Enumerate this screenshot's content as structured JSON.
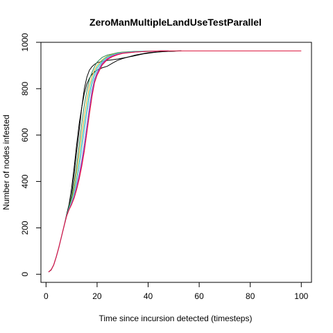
{
  "chart_data": {
    "type": "line",
    "title": "ZeroManMultipleLandUseTestParallel",
    "xlabel": "Time since incursion detected (timesteps)",
    "ylabel": "Number of nodes infested",
    "xlim": [
      -2,
      104
    ],
    "ylim": [
      -35,
      1000
    ],
    "xticks": [
      "0",
      "20",
      "40",
      "60",
      "80",
      "100"
    ],
    "yticks": [
      "0",
      "200",
      "400",
      "600",
      "800",
      "1000"
    ],
    "grid": false,
    "legend": "none",
    "series": [
      {
        "color": "#000000",
        "x": [
          1,
          2,
          3,
          4,
          5,
          6,
          7,
          8,
          9,
          10,
          11,
          12,
          13,
          14,
          15,
          16,
          17,
          18,
          19,
          20,
          22,
          24,
          26,
          28,
          30,
          32,
          34,
          36,
          38,
          40,
          42,
          44,
          46,
          48,
          50,
          52,
          53
        ],
        "y": [
          10,
          18,
          40,
          75,
          115,
          160,
          205,
          250,
          290,
          340,
          430,
          530,
          620,
          720,
          800,
          850,
          880,
          895,
          905,
          912,
          918,
          922,
          925,
          928,
          932,
          936,
          940,
          945,
          950,
          953,
          956,
          958,
          960,
          961,
          962,
          963,
          963
        ]
      },
      {
        "color": "#000000",
        "x": [
          1,
          2,
          3,
          4,
          5,
          6,
          7,
          8,
          9,
          10,
          11,
          12,
          13,
          14,
          15,
          16,
          17,
          18,
          19,
          20,
          22,
          24,
          26,
          28,
          30,
          35,
          40,
          45,
          50,
          53
        ],
        "y": [
          10,
          20,
          40,
          75,
          115,
          160,
          205,
          255,
          300,
          370,
          460,
          560,
          650,
          720,
          780,
          820,
          845,
          862,
          873,
          880,
          890,
          897,
          910,
          922,
          930,
          945,
          955,
          960,
          962,
          963
        ]
      },
      {
        "color": "#2E8B57",
        "x": [
          1,
          2,
          3,
          4,
          5,
          6,
          7,
          8,
          9,
          10,
          11,
          12,
          13,
          14,
          15,
          16,
          17,
          18,
          19,
          20,
          22,
          24,
          26,
          28,
          30,
          35,
          40,
          45,
          48
        ],
        "y": [
          10,
          19,
          40,
          75,
          115,
          160,
          205,
          250,
          290,
          330,
          390,
          470,
          560,
          650,
          730,
          790,
          840,
          870,
          895,
          915,
          935,
          945,
          950,
          955,
          958,
          961,
          962,
          963,
          963
        ]
      },
      {
        "color": "#DAA520",
        "x": [
          1,
          2,
          3,
          4,
          5,
          6,
          7,
          8,
          9,
          10,
          11,
          12,
          13,
          14,
          15,
          16,
          17,
          18,
          19,
          20,
          22,
          24,
          26,
          28,
          30,
          35,
          40,
          45,
          48
        ],
        "y": [
          10,
          19,
          40,
          75,
          115,
          160,
          205,
          250,
          285,
          320,
          370,
          440,
          520,
          600,
          680,
          750,
          810,
          850,
          880,
          900,
          925,
          940,
          948,
          953,
          957,
          960,
          962,
          963,
          963
        ]
      },
      {
        "color": "#00CED1",
        "x": [
          1,
          2,
          3,
          4,
          5,
          6,
          7,
          8,
          9,
          10,
          11,
          12,
          13,
          14,
          15,
          16,
          17,
          18,
          19,
          20,
          22,
          24,
          26,
          28,
          30,
          35,
          40,
          45,
          48
        ],
        "y": [
          10,
          19,
          40,
          75,
          115,
          160,
          205,
          250,
          285,
          315,
          355,
          410,
          480,
          560,
          640,
          710,
          780,
          830,
          865,
          890,
          920,
          937,
          946,
          952,
          956,
          960,
          962,
          963,
          963
        ]
      },
      {
        "color": "#C0C0C0",
        "x": [
          1,
          2,
          3,
          4,
          5,
          6,
          7,
          8,
          9,
          10,
          11,
          12,
          13,
          14,
          15,
          16,
          17,
          18,
          19,
          20,
          22,
          24,
          26,
          28,
          30,
          35,
          40,
          45,
          48
        ],
        "y": [
          10,
          19,
          40,
          75,
          115,
          160,
          205,
          250,
          282,
          310,
          345,
          395,
          460,
          530,
          610,
          690,
          760,
          815,
          855,
          880,
          915,
          933,
          944,
          950,
          955,
          959,
          961,
          963,
          963
        ]
      },
      {
        "color": "#4169E1",
        "x": [
          1,
          2,
          3,
          4,
          5,
          6,
          7,
          8,
          9,
          10,
          11,
          12,
          13,
          14,
          15,
          16,
          17,
          18,
          19,
          20,
          22,
          24,
          26,
          28,
          30,
          35,
          40,
          45,
          48
        ],
        "y": [
          10,
          19,
          40,
          75,
          115,
          160,
          205,
          248,
          280,
          305,
          335,
          380,
          430,
          490,
          560,
          640,
          720,
          790,
          840,
          870,
          910,
          930,
          942,
          949,
          954,
          959,
          961,
          963,
          963
        ]
      },
      {
        "color": "#FF1493",
        "x": [
          1,
          2,
          3,
          4,
          5,
          6,
          7,
          8,
          9,
          10,
          11,
          12,
          13,
          14,
          15,
          16,
          17,
          18,
          19,
          20,
          22,
          24,
          26,
          28,
          30,
          35,
          40,
          45,
          48
        ],
        "y": [
          10,
          19,
          40,
          75,
          115,
          160,
          205,
          248,
          278,
          302,
          330,
          370,
          420,
          475,
          540,
          620,
          700,
          775,
          830,
          862,
          905,
          928,
          940,
          948,
          953,
          958,
          961,
          963,
          963
        ]
      },
      {
        "color": "#DC143C",
        "x": [
          1,
          2,
          3,
          4,
          5,
          6,
          7,
          8,
          9,
          10,
          11,
          12,
          13,
          14,
          15,
          16,
          17,
          18,
          19,
          20,
          22,
          24,
          26,
          28,
          30,
          35,
          40,
          45,
          50,
          60,
          70,
          80,
          90,
          100
        ],
        "y": [
          10,
          19,
          40,
          75,
          115,
          160,
          205,
          248,
          278,
          300,
          328,
          365,
          410,
          465,
          530,
          610,
          690,
          765,
          825,
          858,
          902,
          925,
          938,
          946,
          952,
          958,
          961,
          963,
          963,
          963,
          963,
          963,
          963,
          963
        ]
      }
    ]
  }
}
